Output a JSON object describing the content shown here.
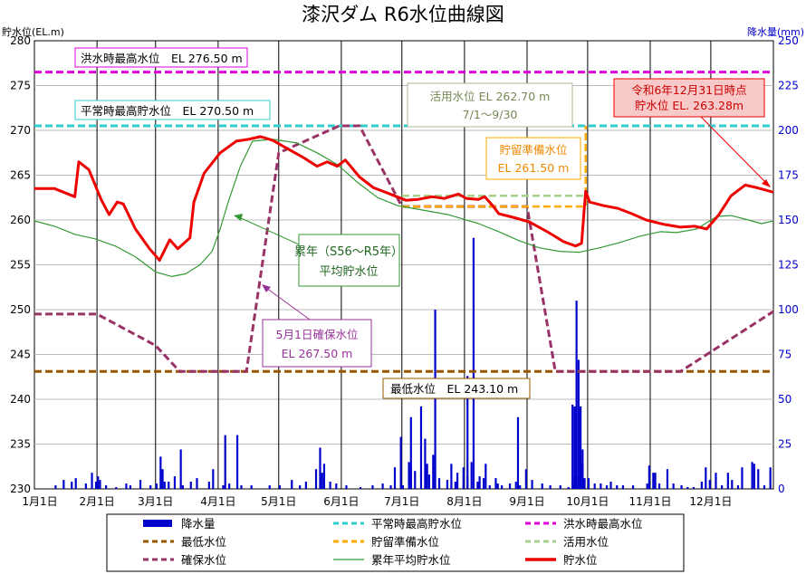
{
  "chart_data": {
    "type": "line",
    "title": "漆沢ダム R6水位曲線図",
    "ylabel_left": "貯水位(EL.m)",
    "ylabel_right": "降水量(mm)",
    "x_months": [
      "1月1日",
      "2月1日",
      "3月1日",
      "4月1日",
      "5月1日",
      "6月1日",
      "7月1日",
      "8月1日",
      "9月1日",
      "10月1日",
      "11月1日",
      "12月1日"
    ],
    "x_domain_days": [
      0,
      366
    ],
    "ylim_left": [
      230,
      280
    ],
    "yticks_left": [
      230,
      235,
      240,
      245,
      250,
      255,
      260,
      265,
      270,
      275,
      280
    ],
    "ylim_right": [
      0,
      250
    ],
    "yticks_right": [
      0,
      25,
      50,
      75,
      100,
      125,
      150,
      175,
      200,
      225,
      250
    ],
    "grid": true,
    "colors": {
      "rain": "#0000cc",
      "normal_max": "#33cccc",
      "flood_max": "#dd00dd",
      "min_level": "#995500",
      "storage_level": "#ffaa00",
      "use_level": "#a6d18c",
      "secure_level": "#993366",
      "average": "#339933",
      "water_level": "#ee0000"
    },
    "reference_lines": [
      {
        "name": "洪水時最高水位",
        "value": 276.5
      },
      {
        "name": "平常時最高貯水位",
        "value": 270.5
      },
      {
        "name": "最低水位",
        "value": 243.1
      }
    ],
    "series": [
      {
        "key": "water_level",
        "name": "貯水位",
        "points": [
          [
            0,
            263.5
          ],
          [
            10,
            263.5
          ],
          [
            20,
            262.6
          ],
          [
            22,
            266.5
          ],
          [
            27,
            265.6
          ],
          [
            33,
            262.3
          ],
          [
            37,
            260.6
          ],
          [
            41,
            262.0
          ],
          [
            44,
            261.8
          ],
          [
            50,
            259.0
          ],
          [
            57,
            256.8
          ],
          [
            62,
            255.5
          ],
          [
            67,
            257.8
          ],
          [
            71,
            256.8
          ],
          [
            77,
            258.0
          ],
          [
            79,
            262.0
          ],
          [
            84,
            265.2
          ],
          [
            92,
            267.5
          ],
          [
            100,
            268.8
          ],
          [
            106,
            269.0
          ],
          [
            112,
            269.3
          ],
          [
            118,
            268.9
          ],
          [
            125,
            268.0
          ],
          [
            133,
            267.0
          ],
          [
            140,
            266.0
          ],
          [
            145,
            266.5
          ],
          [
            150,
            266.0
          ],
          [
            154,
            266.7
          ],
          [
            161,
            264.8
          ],
          [
            168,
            263.6
          ],
          [
            175,
            263.0
          ],
          [
            184,
            262.2
          ],
          [
            190,
            262.3
          ],
          [
            197,
            262.6
          ],
          [
            203,
            262.4
          ],
          [
            210,
            262.9
          ],
          [
            214,
            262.4
          ],
          [
            220,
            262.3
          ],
          [
            223,
            262.6
          ],
          [
            227,
            261.6
          ],
          [
            230,
            260.7
          ],
          [
            237,
            260.3
          ],
          [
            245,
            259.8
          ],
          [
            254,
            258.7
          ],
          [
            262,
            257.6
          ],
          [
            268,
            257.1
          ],
          [
            271,
            257.4
          ],
          [
            273,
            263.2
          ],
          [
            275,
            262.0
          ],
          [
            282,
            261.6
          ],
          [
            289,
            261.3
          ],
          [
            296,
            260.7
          ],
          [
            303,
            260.0
          ],
          [
            312,
            259.5
          ],
          [
            320,
            259.2
          ],
          [
            327,
            259.3
          ],
          [
            333,
            259.0
          ],
          [
            339,
            260.6
          ],
          [
            345,
            262.7
          ],
          [
            352,
            263.9
          ],
          [
            358,
            263.6
          ],
          [
            366,
            263.1
          ]
        ]
      },
      {
        "key": "average",
        "name": "累年平均貯水位",
        "points": [
          [
            0,
            259.9
          ],
          [
            10,
            259.3
          ],
          [
            20,
            258.4
          ],
          [
            30,
            257.9
          ],
          [
            40,
            257.1
          ],
          [
            50,
            255.9
          ],
          [
            60,
            254.2
          ],
          [
            68,
            253.7
          ],
          [
            75,
            254.0
          ],
          [
            82,
            255.0
          ],
          [
            88,
            256.5
          ],
          [
            92,
            259.0
          ],
          [
            96,
            262.0
          ],
          [
            102,
            266.0
          ],
          [
            108,
            268.8
          ],
          [
            118,
            269.0
          ],
          [
            130,
            268.6
          ],
          [
            140,
            267.5
          ],
          [
            150,
            266.2
          ],
          [
            160,
            264.2
          ],
          [
            170,
            262.5
          ],
          [
            180,
            261.6
          ],
          [
            190,
            261.2
          ],
          [
            205,
            260.6
          ],
          [
            220,
            259.6
          ],
          [
            230,
            258.7
          ],
          [
            240,
            257.7
          ],
          [
            250,
            256.9
          ],
          [
            260,
            256.5
          ],
          [
            270,
            256.4
          ],
          [
            280,
            256.9
          ],
          [
            290,
            257.5
          ],
          [
            300,
            258.2
          ],
          [
            310,
            258.7
          ],
          [
            318,
            258.6
          ],
          [
            328,
            259.0
          ],
          [
            338,
            260.4
          ],
          [
            345,
            260.5
          ],
          [
            352,
            260.1
          ],
          [
            360,
            259.6
          ],
          [
            366,
            259.9
          ]
        ]
      },
      {
        "key": "secure_level",
        "name": "確保水位",
        "points": [
          [
            0,
            249.5
          ],
          [
            31,
            249.5
          ],
          [
            60,
            246.0
          ],
          [
            72,
            243.1
          ],
          [
            105,
            243.1
          ],
          [
            121,
            267.5
          ],
          [
            151,
            270.5
          ],
          [
            161,
            270.5
          ],
          [
            182,
            261.5
          ],
          [
            244,
            261.5
          ],
          [
            258,
            243.1
          ],
          [
            320,
            243.1
          ],
          [
            366,
            249.8
          ]
        ]
      },
      {
        "key": "storage_level",
        "name": "貯留準備水位",
        "points": [
          [
            182,
            261.5
          ],
          [
            273,
            261.5
          ],
          [
            273,
            270.5
          ]
        ]
      },
      {
        "key": "use_level",
        "name": "活用水位",
        "points": [
          [
            182,
            262.7
          ],
          [
            273,
            262.7
          ]
        ]
      }
    ],
    "rain_bars": [
      [
        10,
        2
      ],
      [
        14,
        5
      ],
      [
        18,
        4
      ],
      [
        20,
        6
      ],
      [
        25,
        3
      ],
      [
        28,
        9
      ],
      [
        30,
        4
      ],
      [
        31,
        7
      ],
      [
        32,
        5
      ],
      [
        35,
        2
      ],
      [
        40,
        1
      ],
      [
        45,
        3
      ],
      [
        47,
        2
      ],
      [
        52,
        5
      ],
      [
        57,
        2
      ],
      [
        60,
        3
      ],
      [
        62,
        18
      ],
      [
        63,
        11
      ],
      [
        64,
        4
      ],
      [
        66,
        4
      ],
      [
        69,
        7
      ],
      [
        73,
        2
      ],
      [
        77,
        4
      ],
      [
        80,
        6
      ],
      [
        86,
        4
      ],
      [
        88,
        11
      ],
      [
        93,
        2
      ],
      [
        96,
        3
      ],
      [
        102,
        2
      ],
      [
        107,
        2
      ],
      [
        116,
        2
      ],
      [
        121,
        2
      ],
      [
        127,
        5
      ],
      [
        131,
        2
      ],
      [
        134,
        4
      ],
      [
        139,
        11
      ],
      [
        141,
        23
      ],
      [
        142,
        9
      ],
      [
        143,
        14
      ],
      [
        146,
        4
      ],
      [
        149,
        3
      ],
      [
        154,
        2
      ],
      [
        161,
        1
      ],
      [
        167,
        2
      ],
      [
        172,
        3
      ],
      [
        176,
        2
      ],
      [
        178,
        12
      ],
      [
        182,
        2
      ],
      [
        185,
        15
      ],
      [
        186,
        12
      ],
      [
        188,
        10
      ],
      [
        191,
        46
      ],
      [
        193,
        28
      ],
      [
        194,
        14
      ],
      [
        195,
        8
      ],
      [
        197,
        19
      ],
      [
        200,
        6
      ],
      [
        204,
        5
      ],
      [
        206,
        14
      ],
      [
        208,
        4
      ],
      [
        209,
        9
      ],
      [
        212,
        12
      ],
      [
        214,
        7
      ],
      [
        216,
        15
      ],
      [
        219,
        4
      ],
      [
        220,
        7
      ],
      [
        222,
        6
      ],
      [
        223,
        14
      ],
      [
        225,
        2
      ],
      [
        228,
        6
      ],
      [
        229,
        3
      ],
      [
        231,
        2
      ],
      [
        235,
        3
      ],
      [
        238,
        4
      ],
      [
        240,
        2
      ],
      [
        243,
        11
      ],
      [
        246,
        5
      ],
      [
        251,
        3
      ],
      [
        255,
        2
      ],
      [
        260,
        2
      ],
      [
        264,
        1
      ],
      [
        266,
        4
      ],
      [
        267,
        7
      ],
      [
        268,
        7
      ],
      [
        271,
        14
      ],
      [
        272,
        6
      ],
      [
        274,
        6
      ],
      [
        277,
        3
      ],
      [
        280,
        3
      ],
      [
        283,
        2
      ],
      [
        285,
        4
      ],
      [
        288,
        2
      ],
      [
        291,
        2
      ],
      [
        296,
        2
      ],
      [
        303,
        3
      ],
      [
        304,
        13
      ],
      [
        306,
        9
      ],
      [
        307,
        9
      ],
      [
        309,
        3
      ],
      [
        313,
        11
      ],
      [
        316,
        3
      ],
      [
        320,
        2
      ],
      [
        323,
        1
      ],
      [
        326,
        1
      ],
      [
        330,
        4
      ],
      [
        332,
        12
      ],
      [
        334,
        5
      ],
      [
        337,
        9
      ],
      [
        340,
        2
      ],
      [
        343,
        9
      ],
      [
        345,
        5
      ],
      [
        348,
        2
      ],
      [
        350,
        12
      ],
      [
        355,
        15
      ],
      [
        356,
        14
      ],
      [
        358,
        11
      ],
      [
        361,
        2
      ],
      [
        364,
        12
      ]
    ],
    "rain_tall_bars": [
      [
        72,
        22
      ],
      [
        94,
        30
      ],
      [
        100,
        30
      ],
      [
        181,
        29
      ],
      [
        186,
        40
      ],
      [
        198,
        100
      ],
      [
        214,
        63
      ],
      [
        217,
        140
      ],
      [
        239,
        40
      ],
      [
        266,
        47
      ],
      [
        267,
        46
      ],
      [
        268,
        105
      ],
      [
        269,
        72
      ],
      [
        270,
        46
      ],
      [
        271,
        22
      ]
    ],
    "annotations": {
      "flood_max": "洪水時最高水位　EL 276.50 m",
      "normal_max": "平常時最高貯水位　EL 270.50 m",
      "use_line1": "活用水位 EL 262.70 m",
      "use_line2": "7/1～9/30",
      "storage_line1": "貯留準備水位",
      "storage_line2": "EL 261.50 m",
      "current_line1": "令和6年12月31日時点",
      "current_line2": "貯水位 EL. 263.28m",
      "average_line1": "累年（S56～R5年）",
      "average_line2": "平均貯水位",
      "secure_line1": "5月1日確保水位",
      "secure_line2": "EL 267.50 m",
      "min_level": "最低水位　EL 243.10 m"
    },
    "legend": [
      {
        "key": "rain",
        "label": "降水量",
        "style": "bar"
      },
      {
        "key": "normal_max",
        "label": "平常時最高貯水位",
        "style": "dashed"
      },
      {
        "key": "flood_max",
        "label": "洪水時最高水位",
        "style": "dashed"
      },
      {
        "key": "min_level",
        "label": "最低水位",
        "style": "dashed"
      },
      {
        "key": "storage_level",
        "label": "貯留準備水位",
        "style": "dashed"
      },
      {
        "key": "use_level",
        "label": "活用水位",
        "style": "dashed"
      },
      {
        "key": "secure_level",
        "label": "確保水位",
        "style": "dashed"
      },
      {
        "key": "average",
        "label": "累年平均貯水位",
        "style": "thin"
      },
      {
        "key": "water_level",
        "label": "貯水位",
        "style": "thick"
      }
    ]
  }
}
